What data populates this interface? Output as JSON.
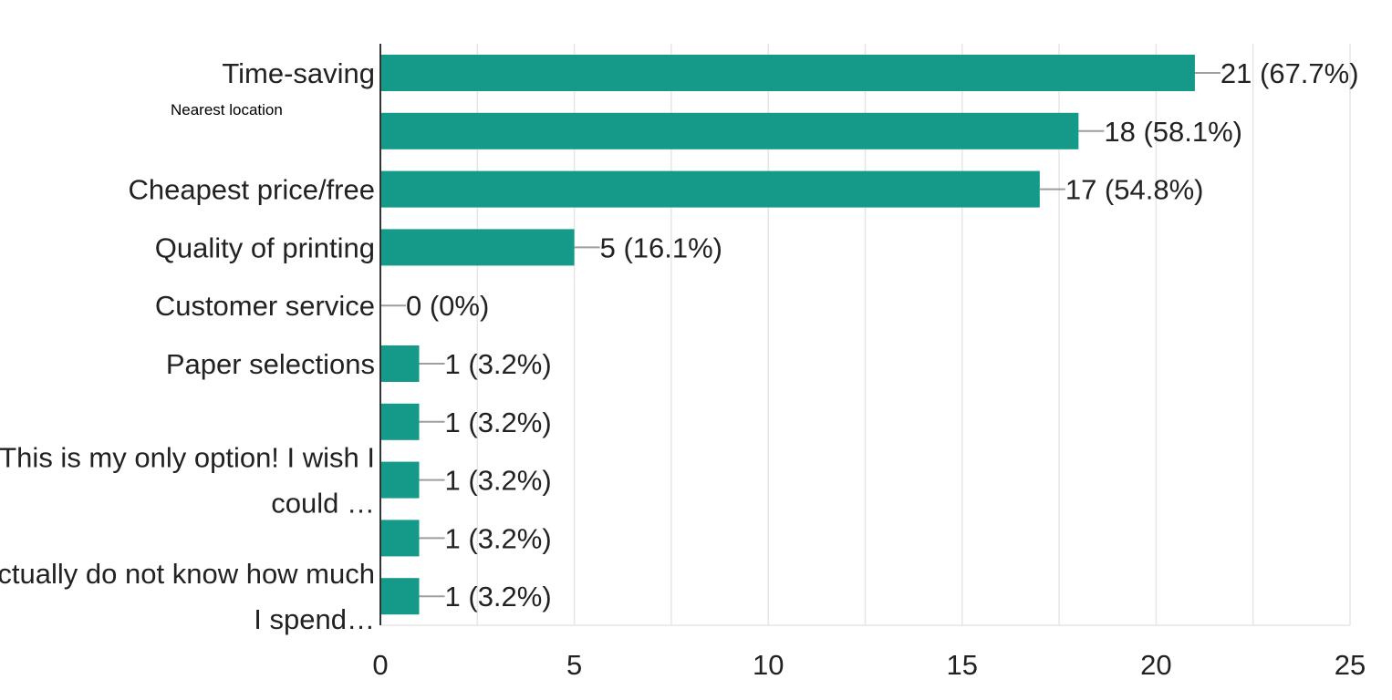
{
  "chart_data": {
    "type": "bar",
    "orientation": "horizontal",
    "categories": [
      [
        "Time-saving"
      ],
      [
        ""
      ],
      [
        "Cheapest price/free"
      ],
      [
        "Quality of printing"
      ],
      [
        "Customer service"
      ],
      [
        "Paper selections"
      ],
      [
        ""
      ],
      [
        "This is my only option! I wish I",
        "could …"
      ],
      [
        ""
      ],
      [
        "I actually do not know how much",
        "I spend…"
      ]
    ],
    "values": [
      21,
      18,
      17,
      5,
      0,
      1,
      1,
      1,
      1,
      1
    ],
    "value_labels": [
      "21 (67.7%)",
      "18 (58.1%)",
      "17 (54.8%)",
      "5 (16.1%)",
      "0 (0%)",
      "1 (3.2%)",
      "1 (3.2%)",
      "1 (3.2%)",
      "1 (3.2%)",
      "1 (3.2%)"
    ],
    "xlim": [
      0,
      25
    ],
    "x_ticks": [
      "0",
      "5",
      "10",
      "15",
      "20",
      "25"
    ],
    "grid": true,
    "bar_color": "#159a8a",
    "leader_color": "#9e9e9e",
    "grid_color": "#e6e6e6",
    "axis_color": "#333333"
  },
  "annotation": {
    "text": "Nearest location"
  }
}
